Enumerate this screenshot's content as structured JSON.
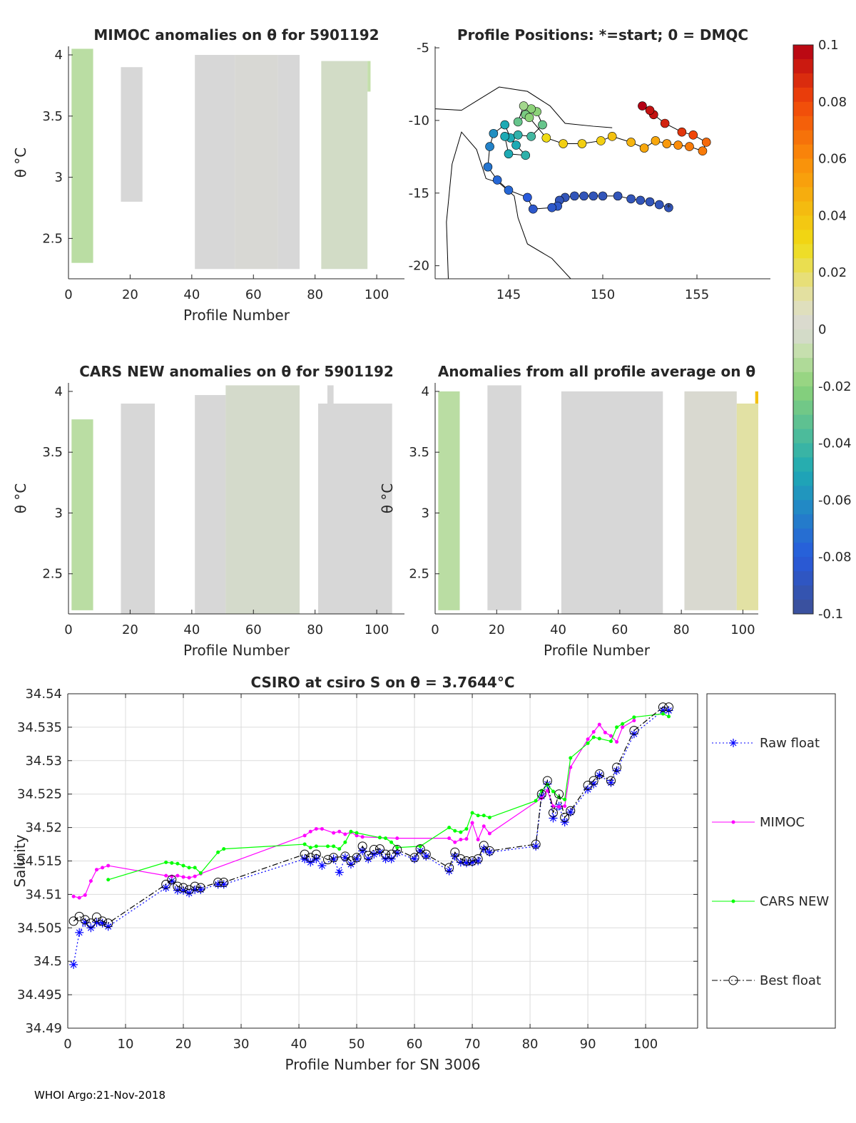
{
  "footer": "WHOI Argo:21-Nov-2018",
  "chart_data": [
    {
      "id": "mimoc",
      "type": "heatmap",
      "title": "MIMOC anomalies on θ  for 5901192",
      "xlabel": "Profile Number",
      "ylabel": "θ °C",
      "xlim": [
        0,
        109
      ],
      "ylim": [
        2.17,
        4.07
      ],
      "xticks": [
        0,
        20,
        40,
        60,
        80,
        100
      ],
      "yticks": [
        2.5,
        3,
        3.5,
        4
      ],
      "blocks": [
        [
          1,
          8,
          2.3,
          4.05,
          -0.01
        ],
        [
          17,
          24,
          2.8,
          3.9,
          0
        ],
        [
          41,
          54,
          2.25,
          4.0,
          0
        ],
        [
          54,
          68,
          2.25,
          4.0,
          0.001
        ],
        [
          68,
          75,
          2.25,
          4.0,
          0
        ],
        [
          82,
          97,
          2.25,
          3.95,
          -0.003
        ],
        [
          97,
          98,
          3.7,
          3.95,
          -0.008
        ]
      ]
    },
    {
      "id": "map",
      "type": "scatter",
      "title": "Profile Positions: *=start; 0 = DMQC",
      "xlim": [
        141.1,
        158.9
      ],
      "ylim": [
        -20.9,
        -4.9
      ],
      "xticks": [
        145,
        150,
        155
      ],
      "yticks": [
        -5,
        -10,
        -15,
        -20
      ],
      "points": [
        [
          153.5,
          -16
        ],
        [
          153,
          -15.8
        ],
        [
          152.5,
          -15.6
        ],
        [
          152,
          -15.5
        ],
        [
          151.5,
          -15.4
        ],
        [
          150.8,
          -15.2
        ],
        [
          150,
          -15.2
        ],
        [
          149.5,
          -15.2
        ],
        [
          149,
          -15.2
        ],
        [
          148.5,
          -15.2
        ],
        [
          148,
          -15.3
        ],
        [
          147.7,
          -15.5
        ],
        [
          147.6,
          -15.9
        ],
        [
          147.3,
          -16
        ],
        [
          146.3,
          -16.1
        ],
        [
          146,
          -15.3
        ],
        [
          145,
          -14.8
        ],
        [
          144.4,
          -14.1
        ],
        [
          143.9,
          -13.2
        ],
        [
          144,
          -11.8
        ],
        [
          144.2,
          -10.9
        ],
        [
          144.8,
          -10.3
        ],
        [
          145.1,
          -11.2
        ],
        [
          145.4,
          -11.7
        ],
        [
          145.9,
          -12.4
        ],
        [
          145,
          -12.3
        ],
        [
          144.8,
          -11.1
        ],
        [
          145.5,
          -11
        ],
        [
          146.2,
          -11.1
        ],
        [
          146.8,
          -10.3
        ],
        [
          146.5,
          -9.4
        ],
        [
          146.2,
          -9.2
        ],
        [
          145.9,
          -9.6
        ],
        [
          145.5,
          -10.1
        ],
        [
          145.8,
          -9
        ],
        [
          146.1,
          -9.8
        ],
        [
          147.0,
          -11.2
        ],
        [
          147.9,
          -11.6
        ],
        [
          148.9,
          -11.6
        ],
        [
          149.9,
          -11.4
        ],
        [
          150.5,
          -11.1
        ],
        [
          151.5,
          -11.5
        ],
        [
          152.2,
          -11.9
        ],
        [
          152.8,
          -11.4
        ],
        [
          153.4,
          -11.6
        ],
        [
          154,
          -11.7
        ],
        [
          154.6,
          -11.8
        ],
        [
          155.3,
          -12.1
        ],
        [
          155.5,
          -11.5
        ],
        [
          154.8,
          -11
        ],
        [
          154.2,
          -10.8
        ],
        [
          153.3,
          -10.2
        ],
        [
          152.7,
          -9.6
        ],
        [
          152.5,
          -9.3
        ],
        [
          152.1,
          -9.0
        ]
      ],
      "values": [
        -0.09,
        -0.09,
        -0.09,
        -0.09,
        -0.09,
        -0.09,
        -0.09,
        -0.09,
        -0.09,
        -0.09,
        -0.09,
        -0.09,
        -0.085,
        -0.085,
        -0.085,
        -0.08,
        -0.075,
        -0.075,
        -0.07,
        -0.065,
        -0.06,
        -0.05,
        -0.05,
        -0.05,
        -0.045,
        -0.05,
        -0.05,
        -0.045,
        -0.04,
        -0.03,
        -0.02,
        -0.02,
        -0.025,
        -0.03,
        -0.015,
        -0.02,
        0.03,
        0.035,
        0.035,
        0.035,
        0.04,
        0.045,
        0.05,
        0.05,
        0.055,
        0.06,
        0.065,
        0.065,
        0.07,
        0.08,
        0.085,
        0.09,
        0.095,
        0.095,
        0.1
      ]
    },
    {
      "id": "colorbar",
      "type": "colorbar",
      "lim": [
        -0.1,
        0.1
      ],
      "ticks": [
        "0.1",
        "0.08",
        "0.06",
        "0.04",
        "0.02",
        "0",
        "-0.02",
        "-0.04",
        "-0.06",
        "-0.08",
        "-0.1"
      ]
    },
    {
      "id": "cars",
      "type": "heatmap",
      "title": "CARS NEW anomalies on θ for 5901192",
      "xlabel": "Profile Number",
      "ylabel": "θ °C",
      "xlim": [
        0,
        109
      ],
      "ylim": [
        2.17,
        4.07
      ],
      "xticks": [
        0,
        20,
        40,
        60,
        80,
        100
      ],
      "yticks": [
        2.5,
        3,
        3.5,
        4
      ],
      "blocks": [
        [
          1,
          8,
          2.2,
          3.77,
          -0.01
        ],
        [
          17,
          28,
          2.17,
          3.9,
          0
        ],
        [
          41,
          51,
          2.17,
          3.97,
          0
        ],
        [
          51,
          75,
          2.17,
          4.05,
          -0.002
        ],
        [
          81,
          105,
          2.17,
          3.9,
          0
        ],
        [
          84,
          86,
          3.9,
          4.05,
          0
        ]
      ]
    },
    {
      "id": "allavg",
      "type": "heatmap",
      "title": "Anomalies from all profile average on θ",
      "xlabel": "Profile Number",
      "ylabel": "θ °C",
      "xlim": [
        0,
        105
      ],
      "ylim": [
        2.17,
        4.07
      ],
      "xticks": [
        0,
        20,
        40,
        60,
        80,
        100
      ],
      "yticks": [
        2.5,
        3,
        3.5,
        4
      ],
      "blocks": [
        [
          1,
          8,
          2.2,
          4.0,
          -0.01
        ],
        [
          17,
          28,
          2.2,
          4.05,
          0
        ],
        [
          41,
          74,
          2.17,
          4.0,
          0
        ],
        [
          81,
          98,
          2.2,
          4.0,
          0.002
        ],
        [
          98,
          105,
          2.2,
          3.9,
          0.012
        ],
        [
          104,
          105,
          3.9,
          4.0,
          0.04
        ]
      ]
    },
    {
      "id": "salinity",
      "type": "line",
      "title": "CSIRO at csiro S on θ = 3.7644°C",
      "xlabel": "Profile Number for SN 3006",
      "ylabel": "Salinity",
      "xlim": [
        0,
        109
      ],
      "ylim": [
        34.49,
        34.54
      ],
      "xticks": [
        0,
        10,
        20,
        30,
        40,
        50,
        60,
        70,
        80,
        90,
        100
      ],
      "yticks": [
        "34.49",
        "34.495",
        "34.5",
        "34.505",
        "34.51",
        "34.515",
        "34.52",
        "34.525",
        "34.53",
        "34.535",
        "34.54"
      ],
      "series": [
        {
          "name": "Raw float",
          "color": "#0000ff",
          "x": [
            1,
            2,
            3,
            4,
            5,
            6,
            7,
            17,
            18,
            19,
            20,
            21,
            22,
            23,
            26,
            27,
            41,
            42,
            43,
            44,
            46,
            47,
            48,
            49,
            50,
            51,
            52,
            53,
            54,
            55,
            56,
            57,
            60,
            61,
            62,
            66,
            67,
            68,
            69,
            70,
            71,
            72,
            73,
            81,
            82,
            83,
            84,
            85,
            86,
            87,
            90,
            91,
            92,
            94,
            95,
            98,
            103,
            104
          ],
          "y": [
            34.4995,
            34.5043,
            34.5058,
            34.505,
            34.5058,
            34.5057,
            34.5052,
            34.511,
            34.512,
            34.5106,
            34.5106,
            34.5102,
            34.5107,
            34.5107,
            34.5115,
            34.5115,
            34.5153,
            34.5148,
            34.5153,
            34.5143,
            34.5153,
            34.5133,
            34.5155,
            34.5145,
            34.5153,
            34.5165,
            34.5153,
            34.516,
            34.5163,
            34.5153,
            34.5153,
            34.5162,
            34.5153,
            34.5165,
            34.5157,
            34.5135,
            34.5157,
            34.5148,
            34.5147,
            34.5148,
            34.515,
            34.5168,
            34.5163,
            34.5172,
            34.5247,
            34.5265,
            34.5214,
            34.5232,
            34.5208,
            34.5223,
            34.5257,
            34.5265,
            34.5278,
            34.5267,
            34.5285,
            34.534,
            34.5375,
            34.5375
          ]
        },
        {
          "name": "MIMOC",
          "color": "#ff00ff",
          "x": [
            1,
            2,
            3,
            4,
            5,
            6,
            7,
            17,
            18,
            19,
            20,
            21,
            22,
            23,
            41,
            42,
            43,
            44,
            46,
            47,
            48,
            49,
            50,
            51,
            54,
            57,
            66,
            67,
            68,
            69,
            70,
            71,
            72,
            73,
            82,
            83,
            84,
            85,
            86,
            87,
            90,
            91,
            92,
            93,
            94,
            95,
            96,
            98
          ],
          "y": [
            34.5097,
            34.5095,
            34.5099,
            34.512,
            34.5137,
            34.514,
            34.5143,
            34.5128,
            34.5127,
            34.5128,
            34.5126,
            34.5125,
            34.5127,
            34.5131,
            34.5188,
            34.5194,
            34.5198,
            34.5198,
            34.5192,
            34.5194,
            34.519,
            34.5193,
            34.5188,
            34.5186,
            34.5185,
            34.5184,
            34.5184,
            34.5178,
            34.5182,
            34.5183,
            34.5207,
            34.5182,
            34.5202,
            34.5191,
            34.5244,
            34.5255,
            34.5232,
            34.5231,
            34.5232,
            34.529,
            34.5332,
            34.5343,
            34.5354,
            34.5342,
            34.5337,
            34.5328,
            34.535,
            34.536
          ]
        },
        {
          "name": "CARS NEW",
          "color": "#00ff00",
          "x": [
            7,
            17,
            18,
            19,
            20,
            21,
            22,
            23,
            26,
            27,
            41,
            42,
            43,
            45,
            46,
            47,
            48,
            49,
            50,
            54,
            55,
            56,
            57,
            61,
            66,
            67,
            68,
            69,
            70,
            71,
            72,
            73,
            81,
            82,
            83,
            84,
            85,
            86,
            87,
            90,
            91,
            92,
            94,
            95,
            96,
            98,
            103,
            104
          ],
          "y": [
            34.5122,
            34.5148,
            34.5147,
            34.5146,
            34.5143,
            34.514,
            34.514,
            34.5132,
            34.5163,
            34.5168,
            34.5175,
            34.517,
            34.5172,
            34.5172,
            34.5172,
            34.5168,
            34.5178,
            34.5194,
            34.5192,
            34.5185,
            34.5184,
            34.5178,
            34.517,
            34.5172,
            34.52,
            34.5195,
            34.5193,
            34.5198,
            34.5222,
            34.5218,
            34.5218,
            34.5215,
            34.524,
            34.5255,
            34.5264,
            34.5254,
            34.5245,
            34.5242,
            34.5304,
            34.5326,
            34.5335,
            34.5333,
            34.5329,
            34.535,
            34.5355,
            34.5365,
            34.537,
            34.5366
          ]
        },
        {
          "name": "Best float",
          "color": "#000000",
          "x": [
            1,
            2,
            3,
            4,
            5,
            6,
            7,
            17,
            18,
            19,
            20,
            21,
            22,
            23,
            26,
            27,
            41,
            42,
            43,
            45,
            46,
            48,
            49,
            50,
            51,
            52,
            53,
            54,
            55,
            56,
            57,
            60,
            61,
            62,
            66,
            67,
            68,
            69,
            70,
            71,
            72,
            73,
            81,
            82,
            83,
            84,
            85,
            86,
            87,
            90,
            91,
            92,
            94,
            95,
            98,
            103,
            104
          ],
          "y": [
            34.506,
            34.5067,
            34.5062,
            34.5057,
            34.5066,
            34.506,
            34.5057,
            34.5115,
            34.5122,
            34.5112,
            34.511,
            34.5107,
            34.5112,
            34.511,
            34.5118,
            34.5118,
            34.516,
            34.5155,
            34.516,
            34.5152,
            34.5155,
            34.5157,
            34.515,
            34.5155,
            34.5172,
            34.5158,
            34.5167,
            34.5168,
            34.516,
            34.516,
            34.5167,
            34.5155,
            34.5168,
            34.516,
            34.514,
            34.5163,
            34.5153,
            34.515,
            34.515,
            34.5153,
            34.5173,
            34.5165,
            34.5175,
            34.525,
            34.527,
            34.5222,
            34.525,
            34.5215,
            34.5225,
            34.5263,
            34.527,
            34.528,
            34.527,
            34.529,
            34.5345,
            34.538,
            34.538
          ]
        }
      ],
      "legend": [
        "Raw float",
        "MIMOC",
        "CARS NEW",
        "Best float"
      ],
      "legend_position": "outside-right",
      "grid": true
    }
  ]
}
